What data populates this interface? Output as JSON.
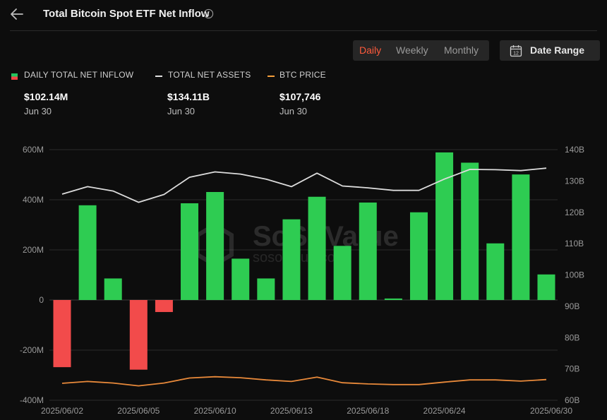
{
  "header": {
    "title": "Total Bitcoin Spot ETF Net Inflow",
    "back_icon": "arrow-left-icon",
    "info_icon": "info-circle-icon"
  },
  "range": {
    "options": [
      "Daily",
      "Weekly",
      "Monthly"
    ],
    "selected": "Daily",
    "date_range_label": "Date Range",
    "date_range_icon": "calendar-icon",
    "calendar_day": "12"
  },
  "legend": [
    {
      "label": "DAILY TOTAL NET INFLOW",
      "value": "$102.14M",
      "date": "Jun 30",
      "colors": [
        "#22c55e",
        "#ef4444"
      ]
    },
    {
      "label": "TOTAL NET ASSETS",
      "value": "$134.11B",
      "date": "Jun 30",
      "colors": [
        "#e0e0e0"
      ]
    },
    {
      "label": "BTC PRICE",
      "value": "$107,746",
      "date": "Jun 30",
      "colors": [
        "#f59e3a"
      ]
    }
  ],
  "watermark": {
    "brand": "SoSoValue",
    "domain": "sosovalue.com"
  },
  "colors": {
    "positive_bar": "#2ecc52",
    "negative_bar": "#f24b4b",
    "net_assets_line": "#dcdcdc",
    "btc_price_line": "#e8893a",
    "accent": "#ff5a3c"
  },
  "chart_data": {
    "type": "bar",
    "x_tick_labels": [
      "2025/06/02",
      "2025/06/05",
      "2025/06/10",
      "2025/06/13",
      "2025/06/18",
      "2025/06/24",
      "2025/06/30"
    ],
    "left_axis": {
      "ticks": [
        "600M",
        "400M",
        "200M",
        "0",
        "-200M",
        "-400M"
      ],
      "range": [
        -400,
        600
      ],
      "unit": "M"
    },
    "right_axis": {
      "ticks": [
        "140B",
        "130B",
        "120B",
        "110B",
        "100B",
        "90B",
        "80B",
        "70B",
        "60B"
      ],
      "range": [
        60,
        140
      ],
      "unit": "B"
    },
    "x": [
      "2025/06/02",
      "2025/06/03",
      "2025/06/04",
      "2025/06/05",
      "2025/06/06",
      "2025/06/09",
      "2025/06/10",
      "2025/06/11",
      "2025/06/12",
      "2025/06/13",
      "2025/06/16",
      "2025/06/17",
      "2025/06/18",
      "2025/06/20",
      "2025/06/23",
      "2025/06/24",
      "2025/06/25",
      "2025/06/26",
      "2025/06/27",
      "2025/06/30"
    ],
    "series": [
      {
        "name": "DAILY TOTAL NET INFLOW",
        "axis": "left",
        "type": "bar",
        "values": [
          -268,
          378,
          86,
          -278,
          -48,
          386,
          431,
          165,
          86,
          322,
          412,
          216,
          389,
          6,
          350,
          589,
          548,
          226,
          501,
          102
        ]
      },
      {
        "name": "TOTAL NET ASSETS",
        "axis": "right",
        "type": "line",
        "values": [
          125.8,
          128.2,
          126.8,
          123.2,
          125.7,
          131.2,
          132.9,
          132.2,
          130.6,
          128.2,
          132.5,
          128.4,
          127.8,
          127.0,
          127.0,
          130.6,
          133.7,
          133.6,
          133.3,
          134.1
        ]
      },
      {
        "name": "BTC PRICE",
        "axis": "right",
        "type": "line",
        "values": [
          65.4,
          66.0,
          65.5,
          64.6,
          65.5,
          67.1,
          67.5,
          67.2,
          66.5,
          66.0,
          67.4,
          65.6,
          65.2,
          65.0,
          65.0,
          65.8,
          66.5,
          66.5,
          66.1,
          66.6
        ]
      }
    ]
  }
}
